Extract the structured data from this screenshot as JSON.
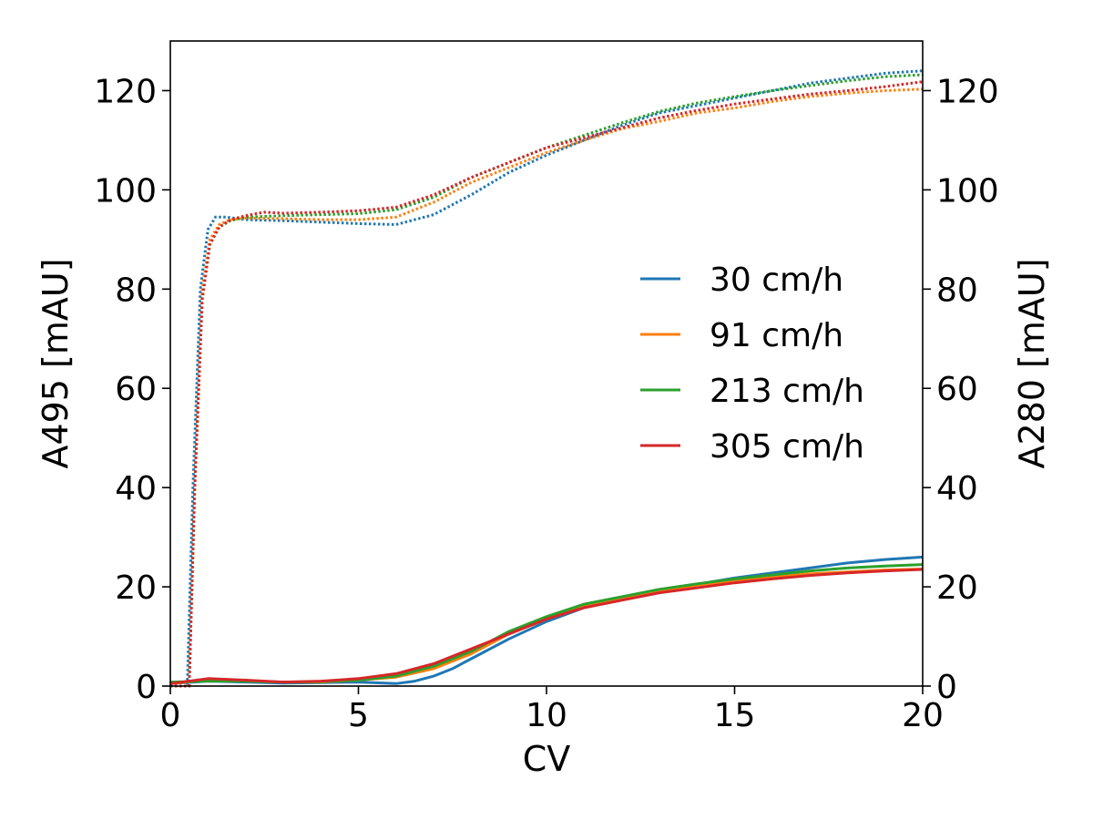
{
  "chart_data": {
    "type": "line",
    "title": "",
    "xlabel": "CV",
    "ylabel_left": "A495 [mAU]",
    "ylabel_right": "A280 [mAU]",
    "xlim": [
      0,
      20
    ],
    "ylim_left": [
      0,
      130
    ],
    "ylim_right": [
      0,
      130
    ],
    "xticks": [
      0,
      5,
      10,
      15,
      20
    ],
    "yticks_left": [
      0,
      20,
      40,
      60,
      80,
      100,
      120
    ],
    "yticks_right": [
      0,
      20,
      40,
      60,
      80,
      100,
      120
    ],
    "grid": false,
    "legend_position": "center-right",
    "series": [
      {
        "name": "30 cm/h",
        "color": "#1f77b4",
        "solid_axis": "left",
        "solid_x": [
          0,
          1,
          2,
          3,
          4,
          5,
          6,
          6.5,
          7,
          7.5,
          8,
          9,
          10,
          11,
          12,
          13,
          14,
          15,
          16,
          17,
          18,
          19,
          20
        ],
        "solid_y": [
          0.5,
          1,
          0.8,
          0.6,
          0.7,
          0.8,
          0.5,
          1,
          2,
          3.5,
          5.5,
          9.5,
          13,
          15.8,
          17.6,
          19.3,
          20.5,
          21.8,
          22.8,
          23.8,
          24.8,
          25.5,
          26
        ],
        "dotted_axis": "right",
        "dotted_x": [
          0,
          0.45,
          0.6,
          0.8,
          1.0,
          1.2,
          1.5,
          2,
          3,
          4,
          5,
          6,
          7,
          8,
          9,
          10,
          11,
          12,
          13,
          14,
          15,
          16,
          17,
          18,
          19,
          20
        ],
        "dotted_y": [
          0,
          0,
          40,
          80,
          92,
          94.5,
          94.5,
          94,
          93.8,
          93.5,
          93.2,
          93,
          95,
          99,
          103.5,
          107,
          110,
          113,
          115.5,
          117,
          118.5,
          120,
          121.5,
          122.5,
          123.5,
          124
        ]
      },
      {
        "name": "91 cm/h",
        "color": "#ff7f0e",
        "solid_axis": "left",
        "solid_x": [
          0,
          1,
          2,
          3,
          4,
          5,
          6,
          7,
          8,
          9,
          10,
          11,
          12,
          13,
          14,
          15,
          16,
          17,
          18,
          19,
          20
        ],
        "solid_y": [
          0.5,
          1.2,
          1,
          0.8,
          0.8,
          1.2,
          1.8,
          3.5,
          6.5,
          10.5,
          13.5,
          16,
          17.8,
          19.2,
          20.3,
          21.2,
          22,
          22.6,
          23,
          23.4,
          23.6
        ],
        "dotted_axis": "right",
        "dotted_x": [
          0,
          0.5,
          0.65,
          0.85,
          1.05,
          1.3,
          1.6,
          2,
          3,
          4,
          5,
          6,
          7,
          8,
          9,
          10,
          11,
          12,
          13,
          14,
          15,
          16,
          17,
          18,
          19,
          20
        ],
        "dotted_y": [
          0,
          0,
          40,
          80,
          90,
          93,
          94,
          94.3,
          94.2,
          94,
          94,
          94.5,
          97.5,
          101.5,
          104.5,
          107.5,
          110,
          112.3,
          113.8,
          115.5,
          116.5,
          117.8,
          118.8,
          119.5,
          120,
          120.3
        ]
      },
      {
        "name": "213 cm/h",
        "color": "#2ca02c",
        "solid_axis": "left",
        "solid_x": [
          0,
          1,
          2,
          3,
          4,
          5,
          6,
          7,
          8,
          9,
          10,
          11,
          12,
          13,
          14,
          15,
          16,
          17,
          18,
          19,
          20
        ],
        "solid_y": [
          0.8,
          1,
          1,
          0.8,
          0.9,
          1.2,
          2,
          4,
          7,
          11,
          14,
          16.5,
          18,
          19.5,
          20.6,
          21.6,
          22.4,
          23.2,
          23.8,
          24.2,
          24.5
        ],
        "dotted_axis": "right",
        "dotted_x": [
          0,
          0.5,
          0.65,
          0.85,
          1.05,
          1.3,
          1.6,
          2,
          3,
          4,
          5,
          6,
          7,
          8,
          9,
          10,
          11,
          12,
          13,
          14,
          15,
          16,
          17,
          18,
          19,
          20
        ],
        "dotted_y": [
          0,
          0,
          40,
          78,
          89,
          92.5,
          93.8,
          94.5,
          94.8,
          95,
          95.2,
          96,
          98.5,
          102.5,
          105.5,
          108.5,
          111,
          113.5,
          115.8,
          117.5,
          118.8,
          120,
          121,
          122,
          122.8,
          123.2
        ]
      },
      {
        "name": "305 cm/h",
        "color": "#d62728",
        "solid_axis": "left",
        "solid_x": [
          0,
          1,
          2,
          3,
          4,
          5,
          6,
          7,
          8,
          9,
          10,
          11,
          12,
          13,
          14,
          15,
          16,
          17,
          18,
          19,
          20
        ],
        "solid_y": [
          0.5,
          1.5,
          1.2,
          0.8,
          1,
          1.5,
          2.5,
          4.5,
          7.5,
          10.5,
          13.5,
          15.8,
          17.3,
          18.8,
          19.8,
          20.8,
          21.6,
          22.3,
          22.8,
          23.2,
          23.5
        ],
        "dotted_axis": "right",
        "dotted_x": [
          0,
          0.5,
          0.65,
          0.85,
          1.05,
          1.3,
          1.6,
          2,
          2.5,
          3,
          4,
          5,
          6,
          7,
          8,
          9,
          10,
          11,
          12,
          13,
          14,
          15,
          16,
          17,
          18,
          19,
          20
        ],
        "dotted_y": [
          0,
          0,
          40,
          78,
          89,
          92.5,
          94,
          94.8,
          95.5,
          95.3,
          95.5,
          95.8,
          96.5,
          99,
          102.5,
          105.5,
          108.5,
          110.5,
          112.5,
          114.5,
          116,
          117.3,
          118.3,
          119.3,
          120,
          120.8,
          121.8
        ]
      }
    ]
  }
}
